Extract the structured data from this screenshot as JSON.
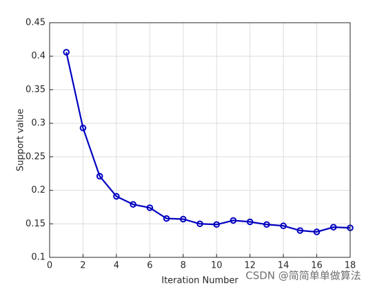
{
  "chart_data": {
    "type": "line",
    "x": [
      1,
      2,
      3,
      4,
      5,
      6,
      7,
      8,
      9,
      10,
      11,
      12,
      13,
      14,
      15,
      16,
      17,
      18
    ],
    "series": [
      {
        "name": "Support value",
        "color": "#0000c0",
        "values": [
          0.406,
          0.293,
          0.221,
          0.191,
          0.179,
          0.174,
          0.158,
          0.157,
          0.15,
          0.149,
          0.155,
          0.153,
          0.149,
          0.147,
          0.14,
          0.138,
          0.145,
          0.144
        ]
      }
    ],
    "xlabel": "Iteration Number",
    "ylabel": "Support value",
    "xlim": [
      0,
      18
    ],
    "xticks": [
      0,
      2,
      4,
      6,
      8,
      10,
      12,
      14,
      16,
      18
    ],
    "ylim": [
      0.1,
      0.45
    ],
    "yticks": [
      0.1,
      0.15,
      0.2,
      0.25,
      0.3,
      0.35,
      0.4,
      0.45
    ],
    "grid": true,
    "watermark": "CSDN @简简单单做算法"
  }
}
